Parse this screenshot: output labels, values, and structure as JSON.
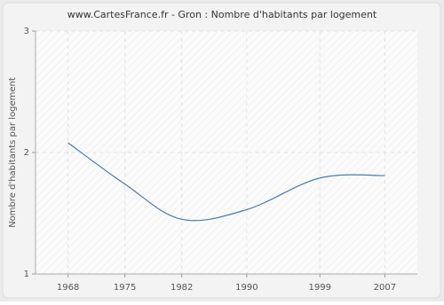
{
  "chart_data": {
    "type": "line",
    "title": "www.CartesFrance.fr - Gron : Nombre d'habitants par logement",
    "y_label": "Nombre d'habitants par logement",
    "x": [
      1968,
      1975,
      1982,
      1990,
      1999,
      2007
    ],
    "series": [
      {
        "name": "Gron",
        "color": "#4a7ab0",
        "values": [
          2.08,
          1.74,
          1.45,
          1.53,
          1.79,
          1.81
        ]
      }
    ],
    "xlim": [
      1964,
      2011
    ],
    "xticks": [
      1968,
      1975,
      1982,
      1990,
      1999,
      2007
    ],
    "ylim": [
      1,
      3
    ],
    "yticks": [
      1,
      2,
      3
    ],
    "grid": true
  }
}
